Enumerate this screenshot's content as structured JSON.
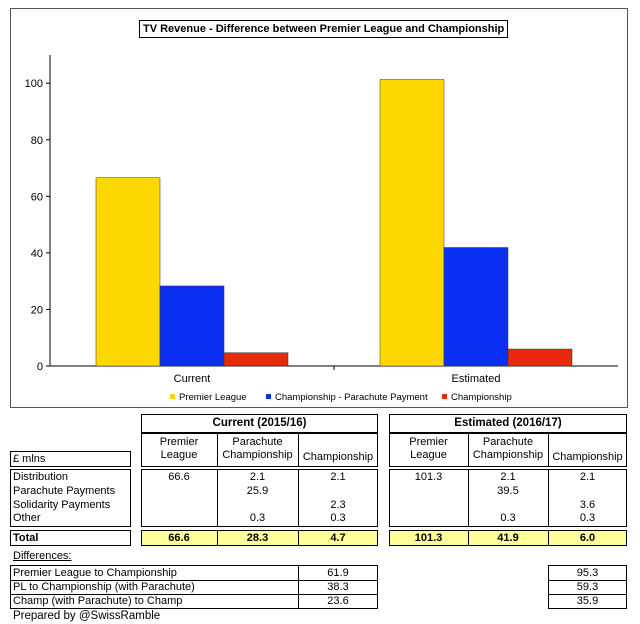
{
  "chart_data": {
    "type": "bar",
    "title": "TV Revenue - Difference between Premier League and Championship",
    "categories": [
      "Current",
      "Estimated"
    ],
    "series": [
      {
        "name": "Premier League",
        "color": "#ffd700",
        "values": [
          66.6,
          101.3
        ]
      },
      {
        "name": "Championship - Parachute Payment",
        "color": "#0a2ff0",
        "values": [
          28.3,
          41.9
        ]
      },
      {
        "name": "Championship",
        "color": "#e8290b",
        "values": [
          4.7,
          6.0
        ]
      }
    ],
    "ylim": [
      0,
      110
    ],
    "yticks": [
      0,
      20,
      40,
      60,
      80,
      100
    ],
    "grid": false,
    "legend": "bottom"
  },
  "table": {
    "units_label": "£ mlns",
    "current_header": "Current (2015/16)",
    "estimated_header": "Estimated (2016/17)",
    "col_pl": [
      "Premier",
      "League"
    ],
    "col_para": [
      "Parachute",
      "Championship"
    ],
    "col_champ": "Championship",
    "rows": [
      {
        "label": "Distribution",
        "c_pl": "66.6",
        "c_para": "2.1",
        "c_champ": "2.1",
        "e_pl": "101.3",
        "e_para": "2.1",
        "e_champ": "2.1"
      },
      {
        "label": "Parachute Payments",
        "c_pl": "",
        "c_para": "25.9",
        "c_champ": "",
        "e_pl": "",
        "e_para": "39.5",
        "e_champ": ""
      },
      {
        "label": "Solidarity Payments",
        "c_pl": "",
        "c_para": "",
        "c_champ": "2.3",
        "e_pl": "",
        "e_para": "",
        "e_champ": "3.6"
      },
      {
        "label": "Other",
        "c_pl": "",
        "c_para": "0.3",
        "c_champ": "0.3",
        "e_pl": "",
        "e_para": "0.3",
        "e_champ": "0.3"
      }
    ],
    "total": {
      "label": "Total",
      "c_pl": "66.6",
      "c_para": "28.3",
      "c_champ": "4.7",
      "e_pl": "101.3",
      "e_para": "41.9",
      "e_champ": "6.0"
    },
    "differences_label": "Differences:",
    "differences": [
      {
        "label": "Premier League to Championship",
        "current": "61.9",
        "estimated": "95.3"
      },
      {
        "label": "PL to Championship (with Parachute)",
        "current": "38.3",
        "estimated": "59.3"
      },
      {
        "label": "Champ (with Parachute) to Champ",
        "current": "23.6",
        "estimated": "35.9"
      }
    ],
    "credit": "Prepared by @SwissRamble"
  }
}
